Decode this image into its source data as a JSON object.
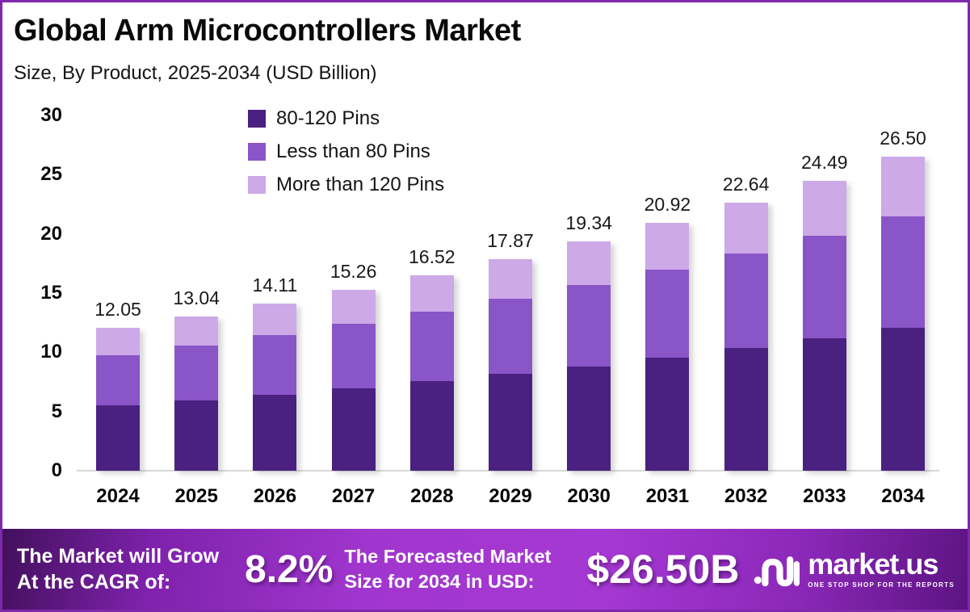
{
  "header": {
    "title": "Global Arm Microcontrollers Market",
    "subtitle": "Size, By Product, 2025-2034 (USD Billion)"
  },
  "chart_data": {
    "type": "bar",
    "stacked": true,
    "title": "Global Arm Microcontrollers Market Size, By Product, 2025-2034 (USD Billion)",
    "categories": [
      "2024",
      "2025",
      "2026",
      "2027",
      "2028",
      "2029",
      "2030",
      "2031",
      "2032",
      "2033",
      "2034"
    ],
    "series": [
      {
        "name": "80-120 Pins",
        "color": "#4a2080",
        "values": [
          5.5,
          5.95,
          6.44,
          6.96,
          7.54,
          8.15,
          8.82,
          9.54,
          10.33,
          11.17,
          12.09
        ]
      },
      {
        "name": "Less than 80 Pins",
        "color": "#8a55c7",
        "values": [
          4.28,
          4.63,
          5.01,
          5.42,
          5.86,
          6.34,
          6.87,
          7.43,
          8.04,
          8.7,
          9.41
        ]
      },
      {
        "name": "More than 120 Pins",
        "color": "#cda9e8",
        "values": [
          2.27,
          2.46,
          2.66,
          2.88,
          3.12,
          3.38,
          3.65,
          3.95,
          4.27,
          4.62,
          5.0
        ]
      }
    ],
    "totals": [
      12.05,
      13.04,
      14.11,
      15.26,
      16.52,
      17.87,
      19.34,
      20.92,
      22.64,
      24.49,
      26.5
    ],
    "total_labels": [
      "12.05",
      "13.04",
      "14.11",
      "15.26",
      "16.52",
      "17.87",
      "19.34",
      "20.92",
      "22.64",
      "24.49",
      "26.50"
    ],
    "y_ticks": [
      0,
      5,
      10,
      15,
      20,
      25,
      30
    ],
    "ylim": [
      0,
      30
    ],
    "xlabel": "",
    "ylabel": "",
    "grid": false,
    "legend_position": "top-center"
  },
  "footer": {
    "cagr_intro_line1": "The Market will Grow",
    "cagr_intro_line2": "At the CAGR of:",
    "cagr_value": "8.2%",
    "forecast_intro_line1": "The Forecasted Market",
    "forecast_intro_line2": "Size for 2034 in USD:",
    "forecast_value": "$26.50B",
    "brand_name": "market.us",
    "brand_tagline": "ONE STOP SHOP FOR THE REPORTS"
  },
  "colors": {
    "frame_border": "#7e28ab",
    "axis_line": "#d8d8d8",
    "banner_purple": "#a136ce"
  }
}
